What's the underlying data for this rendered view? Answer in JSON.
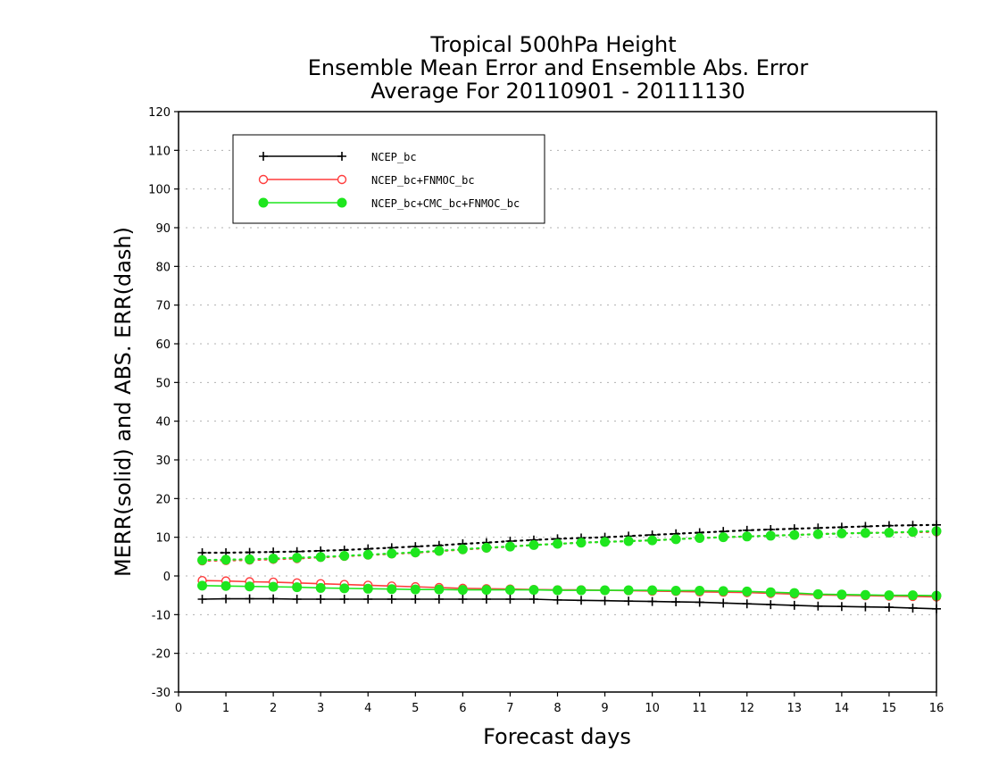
{
  "chart_data": {
    "type": "line",
    "title": [
      "Tropical 500hPa Height",
      "Ensemble Mean Error and Ensemble Abs. Error",
      "Average For 20110901 - 20111130"
    ],
    "xlabel": "Forecast days",
    "ylabel": "MERR(solid) and ABS. ERR(dash)",
    "xlim": [
      0,
      16
    ],
    "ylim": [
      -30,
      120
    ],
    "xticks": [
      "0",
      "1",
      "2",
      "3",
      "4",
      "5",
      "6",
      "7",
      "8",
      "9",
      "10",
      "11",
      "12",
      "13",
      "14",
      "15",
      "16"
    ],
    "yticks": [
      "-30",
      "-20",
      "-10",
      "0",
      "10",
      "20",
      "30",
      "40",
      "50",
      "60",
      "70",
      "80",
      "90",
      "100",
      "110",
      "120"
    ],
    "grid": "horizontal dotted",
    "legend_position": "top-left",
    "x": [
      0.5,
      1,
      1.5,
      2,
      2.5,
      3,
      3.5,
      4,
      4.5,
      5,
      5.5,
      6,
      6.5,
      7,
      7.5,
      8,
      8.5,
      9,
      9.5,
      10,
      10.5,
      11,
      11.5,
      12,
      12.5,
      13,
      13.5,
      14,
      14.5,
      15,
      15.5,
      16
    ],
    "series": [
      {
        "name": "NCEP_bc",
        "color": "#000000",
        "marker": "plus",
        "merr": [
          -6,
          -5.9,
          -5.9,
          -5.9,
          -6,
          -6,
          -6,
          -6,
          -6,
          -6,
          -6,
          -6,
          -6,
          -6,
          -6,
          -6.2,
          -6.3,
          -6.4,
          -6.5,
          -6.6,
          -6.7,
          -6.8,
          -7,
          -7.2,
          -7.4,
          -7.6,
          -7.8,
          -7.9,
          -8,
          -8.1,
          -8.3,
          -8.5
        ],
        "abserr": [
          6,
          6,
          6.1,
          6.2,
          6.3,
          6.5,
          6.7,
          7,
          7.3,
          7.6,
          7.9,
          8.3,
          8.6,
          9,
          9.3,
          9.6,
          9.8,
          10,
          10.3,
          10.6,
          10.9,
          11.2,
          11.5,
          11.8,
          12,
          12.2,
          12.4,
          12.6,
          12.8,
          13,
          13.1,
          13.2
        ]
      },
      {
        "name": "NCEP_bc+FNMOC_bc",
        "color": "#ff3c3c",
        "marker": "open-circle",
        "merr": [
          -1.2,
          -1.3,
          -1.5,
          -1.6,
          -1.8,
          -2,
          -2.2,
          -2.4,
          -2.6,
          -2.8,
          -3,
          -3.2,
          -3.3,
          -3.4,
          -3.5,
          -3.6,
          -3.6,
          -3.7,
          -3.8,
          -3.9,
          -4,
          -4.1,
          -4.2,
          -4.3,
          -4.5,
          -4.7,
          -4.9,
          -5,
          -5.1,
          -5.2,
          -5.3,
          -5.4
        ],
        "abserr": [
          3.9,
          4,
          4.1,
          4.3,
          4.5,
          4.8,
          5.1,
          5.4,
          5.7,
          6,
          6.4,
          6.8,
          7.2,
          7.6,
          8,
          8.3,
          8.6,
          8.8,
          9,
          9.2,
          9.5,
          9.8,
          10,
          10.2,
          10.4,
          10.6,
          10.8,
          11,
          11.1,
          11.2,
          11.3,
          11.4
        ]
      },
      {
        "name": "NCEP_bc+CMC_bc+FNMOC_bc",
        "color": "#1ee61e",
        "marker": "filled-circle",
        "merr": [
          -2.5,
          -2.6,
          -2.7,
          -2.8,
          -2.9,
          -3.1,
          -3.2,
          -3.3,
          -3.4,
          -3.5,
          -3.5,
          -3.6,
          -3.6,
          -3.6,
          -3.6,
          -3.7,
          -3.7,
          -3.7,
          -3.7,
          -3.7,
          -3.8,
          -3.8,
          -3.9,
          -4,
          -4.2,
          -4.4,
          -4.7,
          -4.8,
          -4.9,
          -5,
          -5,
          -5.1
        ],
        "abserr": [
          4.1,
          4.2,
          4.3,
          4.5,
          4.7,
          4.9,
          5.2,
          5.5,
          5.8,
          6.1,
          6.5,
          6.9,
          7.3,
          7.6,
          8,
          8.3,
          8.6,
          8.8,
          9,
          9.2,
          9.5,
          9.8,
          10,
          10.2,
          10.4,
          10.6,
          10.8,
          11,
          11.1,
          11.2,
          11.4,
          11.6
        ]
      }
    ]
  }
}
